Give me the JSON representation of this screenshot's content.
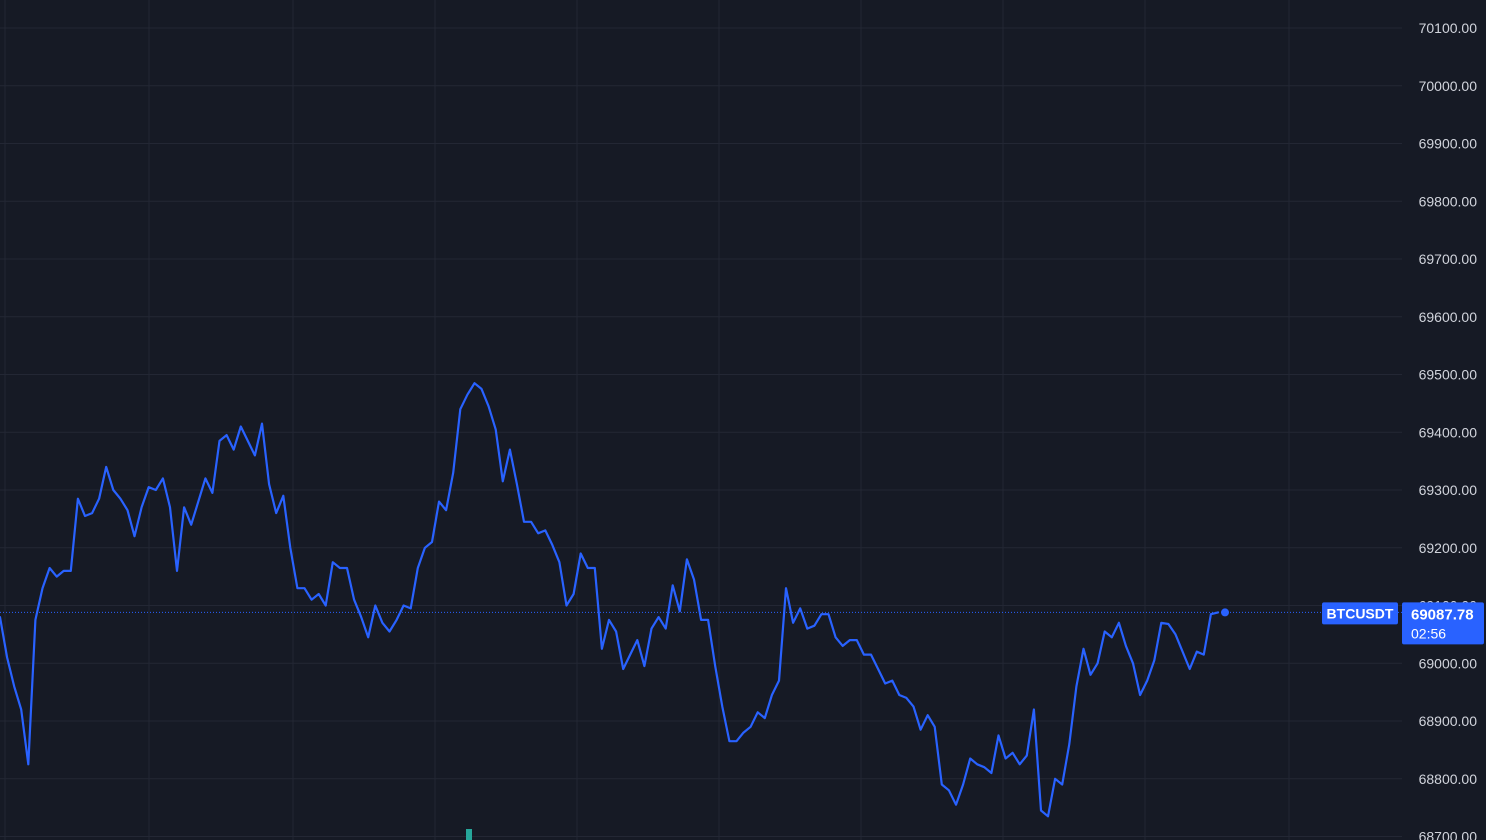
{
  "colors": {
    "background": "#161a25",
    "grid": "#232734",
    "line": "#2962ff",
    "axis_text": "#d1d4dc",
    "label_bg": "#2962ff",
    "volume": "#26a69a"
  },
  "chart_data": {
    "type": "line",
    "title": "",
    "xlabel": "",
    "ylabel": "",
    "ylim": [
      68700,
      70150
    ],
    "y_ticks": [
      68700,
      68800,
      68900,
      69000,
      69100,
      69200,
      69300,
      69400,
      69500,
      69600,
      69700,
      69800,
      69900,
      70000,
      70100
    ],
    "y_tick_labels": [
      "68700.00",
      "68800.00",
      "68900.00",
      "69000.00",
      "69100.00",
      "69200.00",
      "69300.00",
      "69400.00",
      "69500.00",
      "69600.00",
      "69700.00",
      "69800.00",
      "69900.00",
      "70000.00",
      "70100.00"
    ],
    "grid": true,
    "series": [
      {
        "name": "BTCUSDT",
        "last_price_label": "69087.78",
        "countdown": "02:56",
        "values": [
          69080,
          69010,
          68960,
          68920,
          68825,
          69075,
          69130,
          69165,
          69150,
          69160,
          69160,
          69285,
          69255,
          69260,
          69285,
          69340,
          69300,
          69285,
          69265,
          69220,
          69270,
          69305,
          69300,
          69320,
          69270,
          69160,
          69270,
          69240,
          69280,
          69320,
          69295,
          69385,
          69395,
          69370,
          69410,
          69385,
          69360,
          69415,
          69310,
          69260,
          69290,
          69200,
          69130,
          69130,
          69110,
          69120,
          69100,
          69175,
          69165,
          69165,
          69110,
          69080,
          69045,
          69100,
          69070,
          69055,
          69075,
          69100,
          69095,
          69165,
          69200,
          69210,
          69280,
          69265,
          69330,
          69440,
          69465,
          69485,
          69475,
          69445,
          69405,
          69315,
          69370,
          69310,
          69245,
          69245,
          69225,
          69230,
          69205,
          69175,
          69100,
          69120,
          69190,
          69165,
          69165,
          69025,
          69075,
          69055,
          68990,
          69015,
          69040,
          68995,
          69060,
          69080,
          69060,
          69135,
          69090,
          69180,
          69145,
          69075,
          69075,
          68995,
          68925,
          68865,
          68865,
          68880,
          68890,
          68915,
          68905,
          68945,
          68970,
          69130,
          69070,
          69095,
          69060,
          69065,
          69085,
          69085,
          69045,
          69030,
          69040,
          69040,
          69015,
          69015,
          68990,
          68965,
          68970,
          68945,
          68940,
          68925,
          68885,
          68910,
          68890,
          68790,
          68780,
          68755,
          68790,
          68835,
          68825,
          68820,
          68810,
          68875,
          68835,
          68845,
          68825,
          68840,
          68920,
          68745,
          68735,
          68800,
          68790,
          68860,
          68960,
          69025,
          68980,
          69000,
          69055,
          69045,
          69070,
          69030,
          69000,
          68945,
          68970,
          69005,
          69070,
          69068,
          69050,
          69020,
          68990,
          69020,
          69015,
          69085,
          69088
        ]
      }
    ]
  }
}
